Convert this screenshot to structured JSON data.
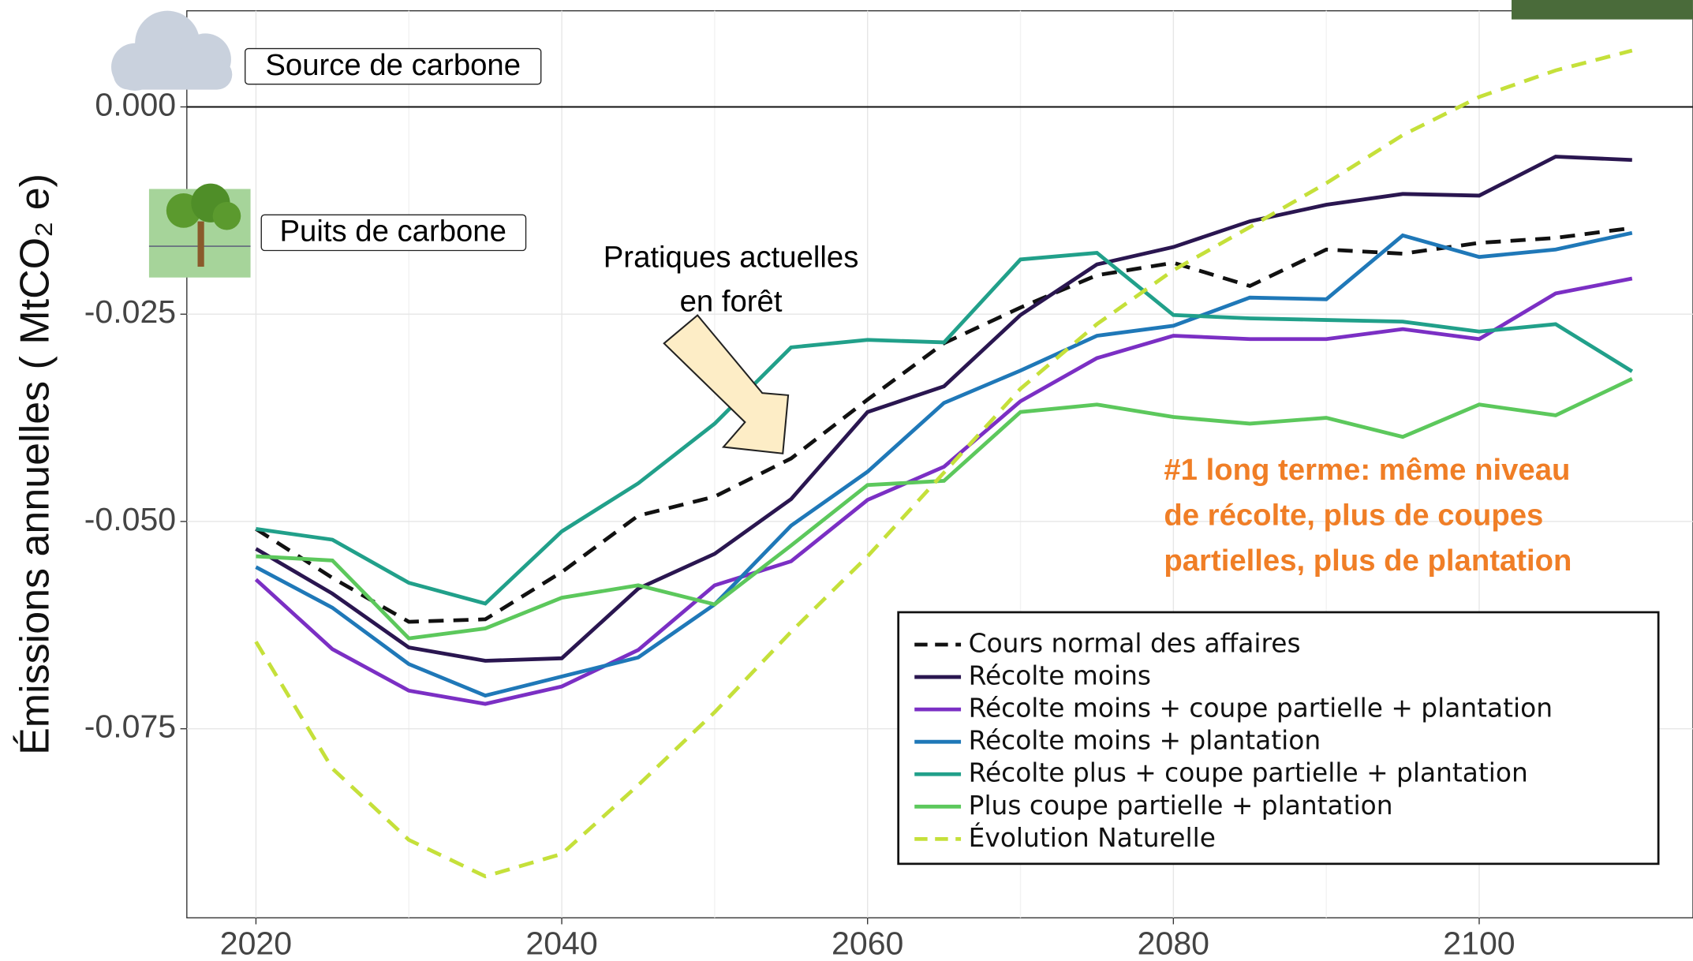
{
  "chart_data": {
    "type": "line",
    "y_label": "Émissions annuelles ( MtCO₂ e)",
    "x": [
      2020,
      2025,
      2030,
      2035,
      2040,
      2045,
      2050,
      2055,
      2060,
      2065,
      2070,
      2075,
      2080,
      2085,
      2090,
      2095,
      2100,
      2105,
      2110
    ],
    "series": [
      {
        "name": "Cours normal des affaires",
        "color": "#111111",
        "linestyle": "dashed",
        "values": [
          -0.0509,
          -0.0568,
          -0.0621,
          -0.0618,
          -0.0561,
          -0.0493,
          -0.047,
          -0.0424,
          -0.0353,
          -0.0285,
          -0.0242,
          -0.0203,
          -0.0188,
          -0.0216,
          -0.0172,
          -0.0177,
          -0.0164,
          -0.0158,
          -0.0146
        ]
      },
      {
        "name": "Récolte moins",
        "color": "#2a1650",
        "linestyle": "solid",
        "values": [
          -0.0533,
          -0.0587,
          -0.0652,
          -0.0668,
          -0.0665,
          -0.0581,
          -0.0539,
          -0.0473,
          -0.0368,
          -0.0337,
          -0.0251,
          -0.019,
          -0.0169,
          -0.0138,
          -0.0118,
          -0.0105,
          -0.0107,
          -0.006,
          -0.0064
        ]
      },
      {
        "name": "Récolte moins + coupe partielle + plantation",
        "color": "#7b2fc4",
        "linestyle": "solid",
        "values": [
          -0.057,
          -0.0654,
          -0.0704,
          -0.072,
          -0.0699,
          -0.0655,
          -0.0577,
          -0.0548,
          -0.0474,
          -0.0434,
          -0.0355,
          -0.0303,
          -0.0276,
          -0.028,
          -0.028,
          -0.0268,
          -0.028,
          -0.0225,
          -0.0207
        ]
      },
      {
        "name": "Récolte moins + plantation",
        "color": "#1f78b8",
        "linestyle": "solid",
        "values": [
          -0.0555,
          -0.0604,
          -0.0672,
          -0.071,
          -0.0687,
          -0.0664,
          -0.06,
          -0.0505,
          -0.044,
          -0.0357,
          -0.0318,
          -0.0276,
          -0.0264,
          -0.023,
          -0.0232,
          -0.0155,
          -0.0181,
          -0.0172,
          -0.0152
        ]
      },
      {
        "name": "Récolte plus + coupe partielle + plantation",
        "color": "#21a08a",
        "linestyle": "solid",
        "values": [
          -0.0509,
          -0.0522,
          -0.0574,
          -0.0599,
          -0.0512,
          -0.0454,
          -0.0382,
          -0.029,
          -0.0281,
          -0.0284,
          -0.0184,
          -0.0176,
          -0.0251,
          -0.0255,
          -0.0257,
          -0.0259,
          -0.0271,
          -0.0262,
          -0.0319
        ]
      },
      {
        "name": "Plus coupe partielle + plantation",
        "color": "#5cc85c",
        "linestyle": "solid",
        "values": [
          -0.0542,
          -0.0547,
          -0.0641,
          -0.0629,
          -0.0592,
          -0.0577,
          -0.06,
          -0.0529,
          -0.0456,
          -0.0451,
          -0.0368,
          -0.0359,
          -0.0374,
          -0.0382,
          -0.0375,
          -0.0398,
          -0.0359,
          -0.0372,
          -0.0328
        ]
      },
      {
        "name": "Évolution Naturelle",
        "color": "#c5e03a",
        "linestyle": "dashed",
        "values": [
          -0.0645,
          -0.0798,
          -0.0884,
          -0.0928,
          -0.0901,
          -0.0818,
          -0.073,
          -0.0633,
          -0.0542,
          -0.0441,
          -0.034,
          -0.0262,
          -0.0197,
          -0.0145,
          -0.0092,
          -0.0034,
          0.0012,
          0.0044,
          0.0068
        ]
      }
    ],
    "xlim": [
      2015.48,
      2113.98
    ],
    "ylim": [
      -0.0978,
      0.01159
    ],
    "xticks": [
      2020,
      2040,
      2060,
      2080,
      2100
    ],
    "yticks": [
      {
        "value": 0,
        "label": "0.000"
      },
      {
        "value": -0.025,
        "label": "-0.025"
      },
      {
        "value": -0.05,
        "label": "-0.050"
      },
      {
        "value": -0.075,
        "label": "-0.075"
      }
    ],
    "grid": true,
    "legend": "bottom-right",
    "annotations": {
      "source": "Source de carbone",
      "sink": "Puits de carbone",
      "current": [
        "Pratiques actuelles",
        "en forêt"
      ],
      "highlight": [
        "#1 long terme: même niveau",
        "de récolte,  plus de coupes",
        "partielles, plus de plantation"
      ]
    }
  }
}
